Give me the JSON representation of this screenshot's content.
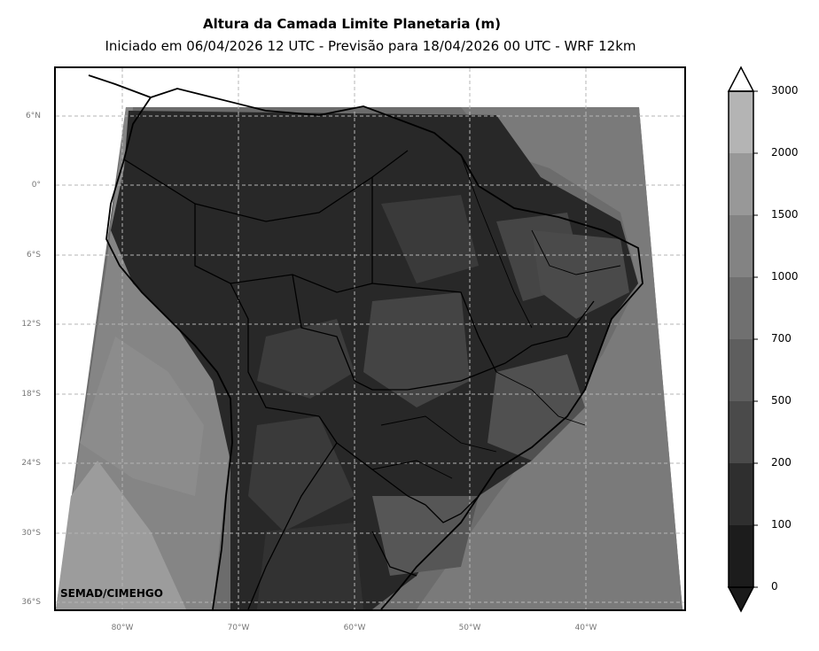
{
  "header": {
    "title": "Altura da Camada Limite Planetaria (m)",
    "subtitle": "Iniciado em 06/04/2026 12 UTC - Previsão para 18/04/2026 00 UTC - WRF 12km"
  },
  "map": {
    "lat_labels": [
      "6°N",
      "0°",
      "6°S",
      "12°S",
      "18°S",
      "24°S",
      "30°S",
      "36°S"
    ],
    "lon_labels": [
      "80°W",
      "70°W",
      "60°W",
      "50°W",
      "40°W"
    ],
    "credit": "SEMAD/CIMEHGO",
    "grid": "dashed",
    "region": "South America"
  },
  "colorbar": {
    "levels": [
      "0",
      "100",
      "200",
      "500",
      "700",
      "1000",
      "1500",
      "2000",
      "3000"
    ],
    "colors": [
      "#1c1c1c",
      "#2f2f2f",
      "#4a4a4a",
      "#5e5e5e",
      "#707070",
      "#838383",
      "#989898",
      "#b4b4b4",
      "#e2e2e2"
    ],
    "extend": "both"
  }
}
